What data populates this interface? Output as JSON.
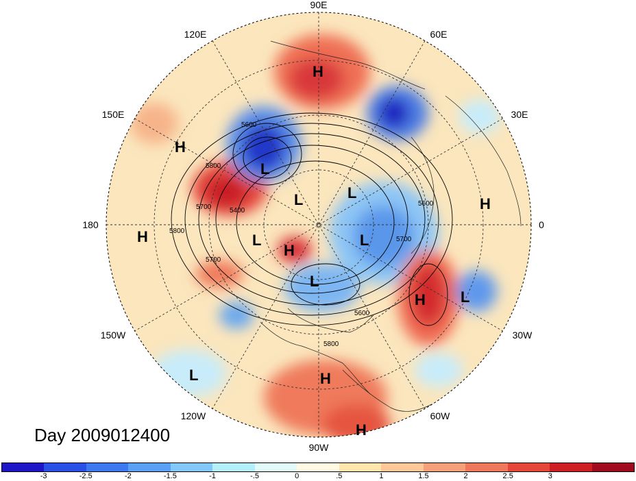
{
  "title": "Day 2009012400",
  "longitude_labels": {
    "n": "90E",
    "ne1": "60E",
    "ne2": "30E",
    "e": "0",
    "se1": "30W",
    "se2": "60W",
    "s": "90W",
    "sw1": "120W",
    "sw2": "150W",
    "w": "180",
    "nw1": "150E",
    "nw2": "120E"
  },
  "pressure_centers": [
    {
      "id": "h1",
      "label": "H"
    },
    {
      "id": "l1",
      "label": "L"
    },
    {
      "id": "h2",
      "label": "H"
    },
    {
      "id": "l2",
      "label": "L"
    },
    {
      "id": "l3",
      "label": "L"
    },
    {
      "id": "h3",
      "label": "H"
    },
    {
      "id": "h4",
      "label": "H"
    },
    {
      "id": "l4",
      "label": "L"
    },
    {
      "id": "h5",
      "label": "H"
    },
    {
      "id": "l5",
      "label": "L"
    },
    {
      "id": "l6",
      "label": "L"
    },
    {
      "id": "h6",
      "label": "H"
    },
    {
      "id": "h7",
      "label": "H"
    },
    {
      "id": "l7",
      "label": "L"
    },
    {
      "id": "h8",
      "label": "H"
    }
  ],
  "contour_labels": {
    "c1": "5600",
    "c2": "5800",
    "c3": "5700",
    "c4": "5400",
    "c5": "5800",
    "c6": "5700",
    "c7": "5600",
    "c8": "5700",
    "c9": "5800",
    "c10": "5600"
  },
  "colorbar": {
    "colors": [
      "#1e14c8",
      "#2850e6",
      "#3c78f0",
      "#5aa0f5",
      "#82c8fa",
      "#b4f0fa",
      "#e1fafa",
      "#fffae1",
      "#ffe6aa",
      "#ffc896",
      "#f5a078",
      "#f0785a",
      "#e64637",
      "#cd1e23",
      "#a00a1e"
    ],
    "labels": [
      "-3",
      "-2.5",
      "-2",
      "-1.5",
      "-1",
      "-.5",
      "0",
      ".5",
      "1",
      "1.5",
      "2",
      "2.5",
      "3"
    ]
  }
}
